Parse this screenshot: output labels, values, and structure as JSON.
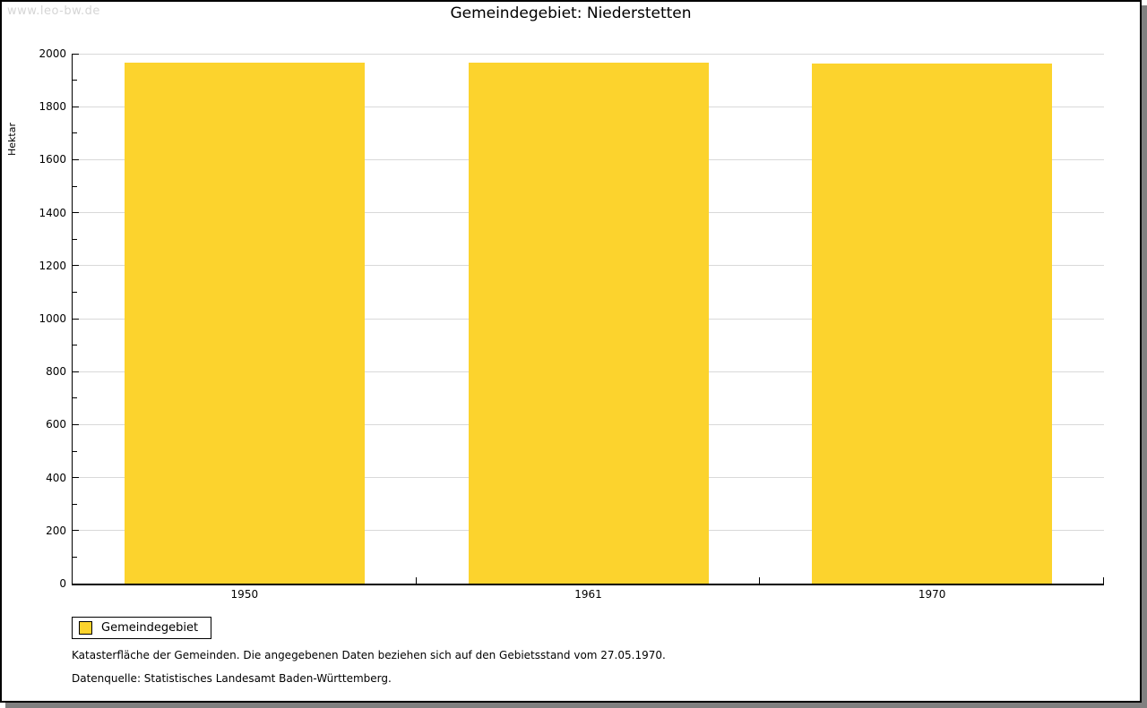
{
  "watermark": "www.leo-bw.de",
  "title": "Gemeindegebiet: Niederstetten",
  "chart_data": {
    "type": "bar",
    "title": "Gemeindegebiet: Niederstetten",
    "categories": [
      "1950",
      "1961",
      "1970"
    ],
    "series": [
      {
        "name": "Gemeindegebiet",
        "values": [
          1965,
          1965,
          1964
        ]
      }
    ],
    "xlabel": "",
    "ylabel": "Hektar",
    "ylim": [
      0,
      2000
    ],
    "ytick_step": 200,
    "minor_tick_step": 100,
    "grid": true,
    "legend_position": "bottom-left",
    "bar_color": "#fcd32d"
  },
  "legend": {
    "items": [
      {
        "label": "Gemeindegebiet",
        "color": "#fcd32d"
      }
    ]
  },
  "footnotes": [
    "Katasterfläche der Gemeinden. Die angegebenen Daten beziehen sich auf den Gebietsstand vom 27.05.1970.",
    "Datenquelle: Statistisches Landesamt Baden-Württemberg."
  ],
  "colors": {
    "bar": "#fcd32d",
    "grid": "#d9d9d9",
    "axis": "#000000",
    "shadow": "#808080",
    "watermark": "#d5d5d5"
  }
}
